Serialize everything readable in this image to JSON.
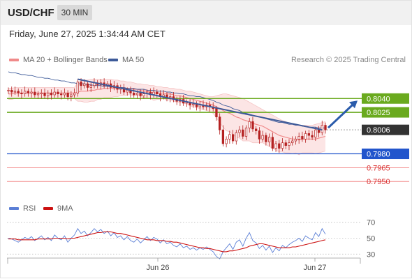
{
  "header": {
    "symbol": "USD/CHF",
    "timeframe": "30 MIN"
  },
  "timestamp": "Friday, June 27, 2025 1:34:44 AM CET",
  "legend": {
    "ma20": "MA 20 + Bollinger Bands",
    "ma50": "MA 50",
    "credit": "Research © 2025 Trading Central",
    "rsi": "RSI",
    "ma9": "9MA"
  },
  "colors": {
    "ma20": "#f08a8a",
    "ma50": "#3d5a99",
    "green": "#6aaa1e",
    "blue": "#2255cc",
    "red": "#f07070",
    "candle": "#b52222",
    "rsi": "#5b7fd6",
    "ma9": "#cc1111",
    "band": "#fbe0e0",
    "price_box": "#333333"
  },
  "chart_data": [
    {
      "type": "candlestick",
      "title": "USD/CHF",
      "timeframe": "30 MIN",
      "x_ticks": [
        "Jun 26",
        "Jun 27"
      ],
      "ylim": [
        0.7935,
        0.8075
      ],
      "price_levels": [
        {
          "label": "0.8040",
          "value": 0.804,
          "style": "green-line"
        },
        {
          "label": "0.8025",
          "value": 0.8025,
          "style": "green-line"
        },
        {
          "label": "0.8006",
          "value": 0.8006,
          "style": "current-price"
        },
        {
          "label": "0.7980",
          "value": 0.798,
          "style": "blue-line"
        },
        {
          "label": "0.7965",
          "value": 0.7965,
          "style": "red-line"
        },
        {
          "label": "0.7950",
          "value": 0.795,
          "style": "red-line"
        }
      ],
      "close": [
        0.8049,
        0.8047,
        0.8048,
        0.8046,
        0.8045,
        0.8048,
        0.8046,
        0.8047,
        0.8044,
        0.8045,
        0.8046,
        0.8043,
        0.8046,
        0.8044,
        0.8047,
        0.8045,
        0.8044,
        0.8046,
        0.8042,
        0.8044,
        0.8046,
        0.8058,
        0.8054,
        0.8056,
        0.8052,
        0.8054,
        0.8057,
        0.8055,
        0.8057,
        0.8054,
        0.8056,
        0.8052,
        0.8054,
        0.805,
        0.8051,
        0.8047,
        0.8049,
        0.8046,
        0.8044,
        0.8046,
        0.8043,
        0.8045,
        0.8047,
        0.8044,
        0.8047,
        0.8045,
        0.8042,
        0.8044,
        0.8041,
        0.8042,
        0.8039,
        0.8037,
        0.8039,
        0.8035,
        0.8036,
        0.8033,
        0.8034,
        0.8031,
        0.8033,
        0.8031,
        0.8033,
        0.8031,
        0.8029,
        0.802,
        0.8006,
        0.7991,
        0.7996,
        0.8001,
        0.7994,
        0.8003,
        0.8006,
        0.7999,
        0.8008,
        0.8015,
        0.8007,
        0.8005,
        0.7996,
        0.8,
        0.7993,
        0.7998,
        0.7986,
        0.7991,
        0.7986,
        0.7992,
        0.7989,
        0.7992,
        0.7994,
        0.7996,
        0.7999,
        0.7996,
        0.8002,
        0.8,
        0.7998,
        0.8006,
        0.8003,
        0.8011,
        0.8006
      ],
      "ma20": [
        0.8045,
        0.8045,
        0.8046,
        0.8046,
        0.8046,
        0.8046,
        0.8046,
        0.8046,
        0.8046,
        0.8046,
        0.8046,
        0.8046,
        0.8046,
        0.8046,
        0.8046,
        0.8046,
        0.8046,
        0.8046,
        0.8046,
        0.8046,
        0.8046,
        0.8047,
        0.8048,
        0.8048,
        0.8048,
        0.8049,
        0.8049,
        0.805,
        0.805,
        0.8051,
        0.8051,
        0.8051,
        0.8051,
        0.8051,
        0.8051,
        0.8051,
        0.8051,
        0.8051,
        0.805,
        0.805,
        0.8049,
        0.8048,
        0.8048,
        0.8047,
        0.8046,
        0.8046,
        0.8046,
        0.8046,
        0.8045,
        0.8045,
        0.8044,
        0.8043,
        0.8043,
        0.8042,
        0.8041,
        0.804,
        0.8039,
        0.8038,
        0.8037,
        0.8036,
        0.8035,
        0.8034,
        0.8033,
        0.8031,
        0.8029,
        0.8027,
        0.8025,
        0.8024,
        0.8022,
        0.802,
        0.8019,
        0.8017,
        0.8016,
        0.8015,
        0.8013,
        0.8012,
        0.8011,
        0.801,
        0.8008,
        0.8006,
        0.8004,
        0.8002,
        0.8,
        0.7999,
        0.7998,
        0.7997,
        0.7996,
        0.7996,
        0.7995,
        0.7996,
        0.7996,
        0.7996,
        0.7996,
        0.7996,
        0.7997,
        0.7998,
        0.7999
      ],
      "ma50": [
        0.8069,
        0.8068,
        0.8068,
        0.8067,
        0.8066,
        0.8066,
        0.8065,
        0.8065,
        0.8064,
        0.8063,
        0.8063,
        0.8062,
        0.8062,
        0.8061,
        0.806,
        0.806,
        0.8059,
        0.8059,
        0.8058,
        0.8057,
        0.8057,
        0.8056,
        0.8056,
        0.8056,
        0.8055,
        0.8055,
        0.8054,
        0.8054,
        0.8054,
        0.8053,
        0.8053,
        0.8053,
        0.8052,
        0.8052,
        0.8052,
        0.8052,
        0.8051,
        0.8051,
        0.8051,
        0.805,
        0.805,
        0.805,
        0.8049,
        0.8049,
        0.8049,
        0.8048,
        0.8048,
        0.8048,
        0.8047,
        0.8047,
        0.8046,
        0.8046,
        0.8045,
        0.8045,
        0.8044,
        0.8043,
        0.8043,
        0.8042,
        0.8042,
        0.8041,
        0.804,
        0.8039,
        0.8038,
        0.8036,
        0.8035,
        0.8033,
        0.8032,
        0.8031,
        0.8029,
        0.8028,
        0.8027,
        0.8025,
        0.8024,
        0.8023,
        0.8022,
        0.8021,
        0.802,
        0.8019,
        0.8018,
        0.8017,
        0.8016,
        0.8015,
        0.8014,
        0.8014,
        0.8013,
        0.8012,
        0.8012,
        0.8011,
        0.8011,
        0.801,
        0.801,
        0.8009,
        0.8009,
        0.8009,
        0.8008,
        0.8008,
        0.8008
      ],
      "bollinger_upper": [
        0.8051,
        0.8051,
        0.8052,
        0.8052,
        0.8052,
        0.8052,
        0.8052,
        0.8052,
        0.8052,
        0.8052,
        0.8052,
        0.8052,
        0.8052,
        0.8052,
        0.8052,
        0.8052,
        0.8052,
        0.8052,
        0.8052,
        0.8052,
        0.8052,
        0.8057,
        0.8059,
        0.806,
        0.806,
        0.8061,
        0.8061,
        0.8061,
        0.8061,
        0.8061,
        0.8061,
        0.8061,
        0.806,
        0.806,
        0.8059,
        0.8059,
        0.8058,
        0.8058,
        0.8057,
        0.8056,
        0.8056,
        0.8055,
        0.8055,
        0.8054,
        0.8054,
        0.8053,
        0.8053,
        0.8052,
        0.8052,
        0.8051,
        0.8051,
        0.805,
        0.805,
        0.8049,
        0.8048,
        0.8048,
        0.8047,
        0.8046,
        0.8045,
        0.8044,
        0.8043,
        0.8042,
        0.8042,
        0.8043,
        0.8044,
        0.8045,
        0.8045,
        0.8044,
        0.8043,
        0.8042,
        0.8041,
        0.804,
        0.8038,
        0.8036,
        0.8034,
        0.8032,
        0.803,
        0.8028,
        0.8026,
        0.8024,
        0.8022,
        0.802,
        0.8018,
        0.8016,
        0.8015,
        0.8013,
        0.8012,
        0.8011,
        0.8011,
        0.8011,
        0.8011,
        0.8011,
        0.8011,
        0.8012,
        0.8013,
        0.8014,
        0.8015
      ],
      "bollinger_lower": [
        0.8039,
        0.8039,
        0.804,
        0.804,
        0.804,
        0.804,
        0.804,
        0.804,
        0.804,
        0.804,
        0.804,
        0.804,
        0.804,
        0.804,
        0.804,
        0.804,
        0.804,
        0.804,
        0.804,
        0.804,
        0.804,
        0.8037,
        0.8037,
        0.8036,
        0.8036,
        0.8037,
        0.8037,
        0.8039,
        0.8039,
        0.8041,
        0.8041,
        0.8041,
        0.8042,
        0.8042,
        0.8043,
        0.8043,
        0.8044,
        0.8044,
        0.8043,
        0.8044,
        0.8042,
        0.8041,
        0.8041,
        0.804,
        0.8038,
        0.8039,
        0.8039,
        0.804,
        0.8038,
        0.8039,
        0.8037,
        0.8036,
        0.8036,
        0.8035,
        0.8034,
        0.8032,
        0.8031,
        0.803,
        0.8029,
        0.8028,
        0.8027,
        0.8026,
        0.8024,
        0.8019,
        0.8014,
        0.8009,
        0.8005,
        0.8004,
        0.8001,
        0.7998,
        0.7997,
        0.7994,
        0.7994,
        0.7994,
        0.7992,
        0.7992,
        0.7992,
        0.7992,
        0.799,
        0.7988,
        0.7986,
        0.7984,
        0.7982,
        0.7982,
        0.7981,
        0.7981,
        0.798,
        0.7981,
        0.7979,
        0.7981,
        0.7981,
        0.7981,
        0.7981,
        0.798,
        0.7981,
        0.7982,
        0.7983
      ],
      "trendline": [
        {
          "i": 21,
          "v": 0.8061
        },
        {
          "i": 95,
          "v": 0.8006
        }
      ],
      "forecast_arrow": {
        "from": 0.8006,
        "to": 0.804
      }
    },
    {
      "type": "line",
      "title": "RSI",
      "ylim": [
        25,
        75
      ],
      "y_ticks": [
        70,
        50,
        30
      ],
      "series": [
        {
          "name": "RSI",
          "values": [
            50,
            49,
            47,
            45,
            48,
            51,
            49,
            52,
            47,
            50,
            53,
            48,
            51,
            47,
            54,
            50,
            48,
            53,
            45,
            50,
            54,
            62,
            56,
            59,
            53,
            57,
            62,
            58,
            61,
            56,
            59,
            53,
            57,
            51,
            53,
            48,
            52,
            47,
            45,
            49,
            44,
            48,
            52,
            47,
            51,
            49,
            44,
            48,
            43,
            45,
            41,
            39,
            43,
            38,
            40,
            36,
            38,
            35,
            38,
            36,
            39,
            36,
            33,
            27,
            24,
            33,
            38,
            43,
            36,
            45,
            48,
            40,
            50,
            57,
            47,
            44,
            37,
            41,
            35,
            40,
            32,
            38,
            34,
            41,
            38,
            42,
            45,
            47,
            50,
            46,
            53,
            50,
            48,
            57,
            52,
            62,
            55
          ]
        },
        {
          "name": "9MA",
          "values": [
            49,
            49,
            49,
            48,
            48,
            48,
            48,
            48,
            48,
            49,
            49,
            49,
            49,
            49,
            50,
            50,
            50,
            50,
            49,
            50,
            50,
            51,
            52,
            53,
            54,
            55,
            56,
            57,
            57,
            58,
            58,
            58,
            57,
            56,
            56,
            55,
            54,
            53,
            52,
            51,
            50,
            49,
            48,
            48,
            48,
            47,
            47,
            47,
            46,
            46,
            45,
            45,
            44,
            43,
            42,
            41,
            40,
            39,
            38,
            38,
            37,
            37,
            36,
            35,
            34,
            33,
            33,
            34,
            34,
            35,
            36,
            37,
            38,
            40,
            41,
            42,
            43,
            43,
            42,
            41,
            40,
            39,
            38,
            38,
            38,
            38,
            39,
            39,
            40,
            41,
            42,
            43,
            44,
            45,
            46,
            47,
            48
          ]
        }
      ],
      "reference_lines": [
        70,
        50,
        30
      ]
    }
  ]
}
